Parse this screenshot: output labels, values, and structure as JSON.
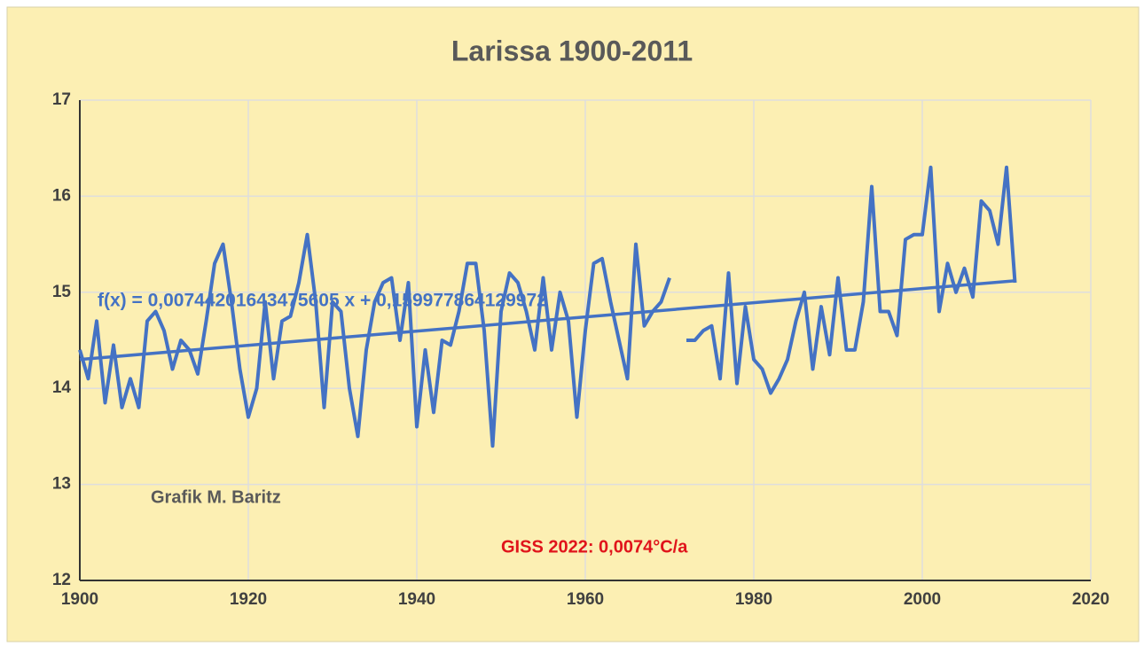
{
  "chart_data": {
    "type": "line",
    "title": "Larissa 1900-2011",
    "annotations": [
      "f(x) = 0,00744201643475605 x + 0,159977864129972",
      "Grafik M. Baritz",
      "GISS 2022: 0,0074°C/a"
    ],
    "x": [
      1900,
      1901,
      1902,
      1903,
      1904,
      1905,
      1906,
      1907,
      1908,
      1909,
      1910,
      1911,
      1912,
      1913,
      1914,
      1915,
      1916,
      1917,
      1918,
      1919,
      1920,
      1921,
      1922,
      1923,
      1924,
      1925,
      1926,
      1927,
      1928,
      1929,
      1930,
      1931,
      1932,
      1933,
      1934,
      1935,
      1936,
      1937,
      1938,
      1939,
      1940,
      1941,
      1942,
      1943,
      1944,
      1945,
      1946,
      1947,
      1948,
      1949,
      1950,
      1951,
      1952,
      1953,
      1954,
      1955,
      1956,
      1957,
      1958,
      1959,
      1960,
      1961,
      1962,
      1963,
      1964,
      1965,
      1966,
      1967,
      1968,
      1969,
      1970,
      1971,
      1972,
      1973,
      1974,
      1975,
      1976,
      1977,
      1978,
      1979,
      1980,
      1981,
      1982,
      1983,
      1984,
      1985,
      1986,
      1987,
      1988,
      1989,
      1990,
      1991,
      1992,
      1993,
      1994,
      1995,
      1996,
      1997,
      1998,
      1999,
      2000,
      2001,
      2002,
      2003,
      2004,
      2005,
      2006,
      2007,
      2008,
      2009,
      2010,
      2011
    ],
    "series": [
      {
        "color": "#4472c4",
        "values": [
          14.4,
          14.1,
          14.7,
          13.85,
          14.45,
          13.8,
          14.1,
          13.8,
          14.7,
          14.8,
          14.6,
          14.2,
          14.5,
          14.4,
          14.15,
          14.7,
          15.3,
          15.5,
          14.9,
          14.2,
          13.7,
          14.0,
          14.9,
          14.1,
          14.7,
          14.75,
          15.1,
          15.6,
          14.9,
          13.8,
          14.9,
          14.8,
          14.0,
          13.5,
          14.4,
          14.9,
          15.1,
          15.15,
          14.5,
          15.1,
          13.6,
          14.4,
          13.75,
          14.5,
          14.45,
          14.8,
          15.3,
          15.3,
          14.6,
          13.4,
          14.8,
          15.2,
          15.1,
          14.8,
          14.4,
          15.15,
          14.4,
          15.0,
          14.7,
          13.7,
          14.6,
          15.3,
          15.35,
          14.9,
          14.5,
          14.1,
          15.5,
          14.65,
          14.8,
          14.9,
          15.15,
          null,
          14.5,
          14.5,
          14.6,
          14.65,
          14.1,
          15.2,
          14.05,
          14.85,
          14.3,
          14.2,
          13.95,
          14.1,
          14.3,
          14.7,
          15.0,
          14.2,
          14.85,
          14.35,
          15.15,
          14.4,
          14.4,
          14.9,
          16.1,
          14.8,
          14.8,
          14.55,
          15.55,
          15.6,
          15.6,
          16.3,
          14.8,
          15.3,
          15.0,
          15.25,
          14.95,
          15.95,
          15.85,
          15.5,
          16.3,
          15.1
        ]
      },
      {
        "color": "#4472c4",
        "x": [
          1900,
          2011
        ],
        "values": [
          14.3,
          15.12
        ]
      }
    ],
    "xlim": [
      1900,
      2020
    ],
    "xticks": [
      1900,
      1920,
      1940,
      1960,
      1980,
      2000,
      2020
    ],
    "ylim": [
      12,
      17
    ],
    "yticks": [
      12,
      13,
      14,
      15,
      16,
      17
    ],
    "grid": true
  }
}
